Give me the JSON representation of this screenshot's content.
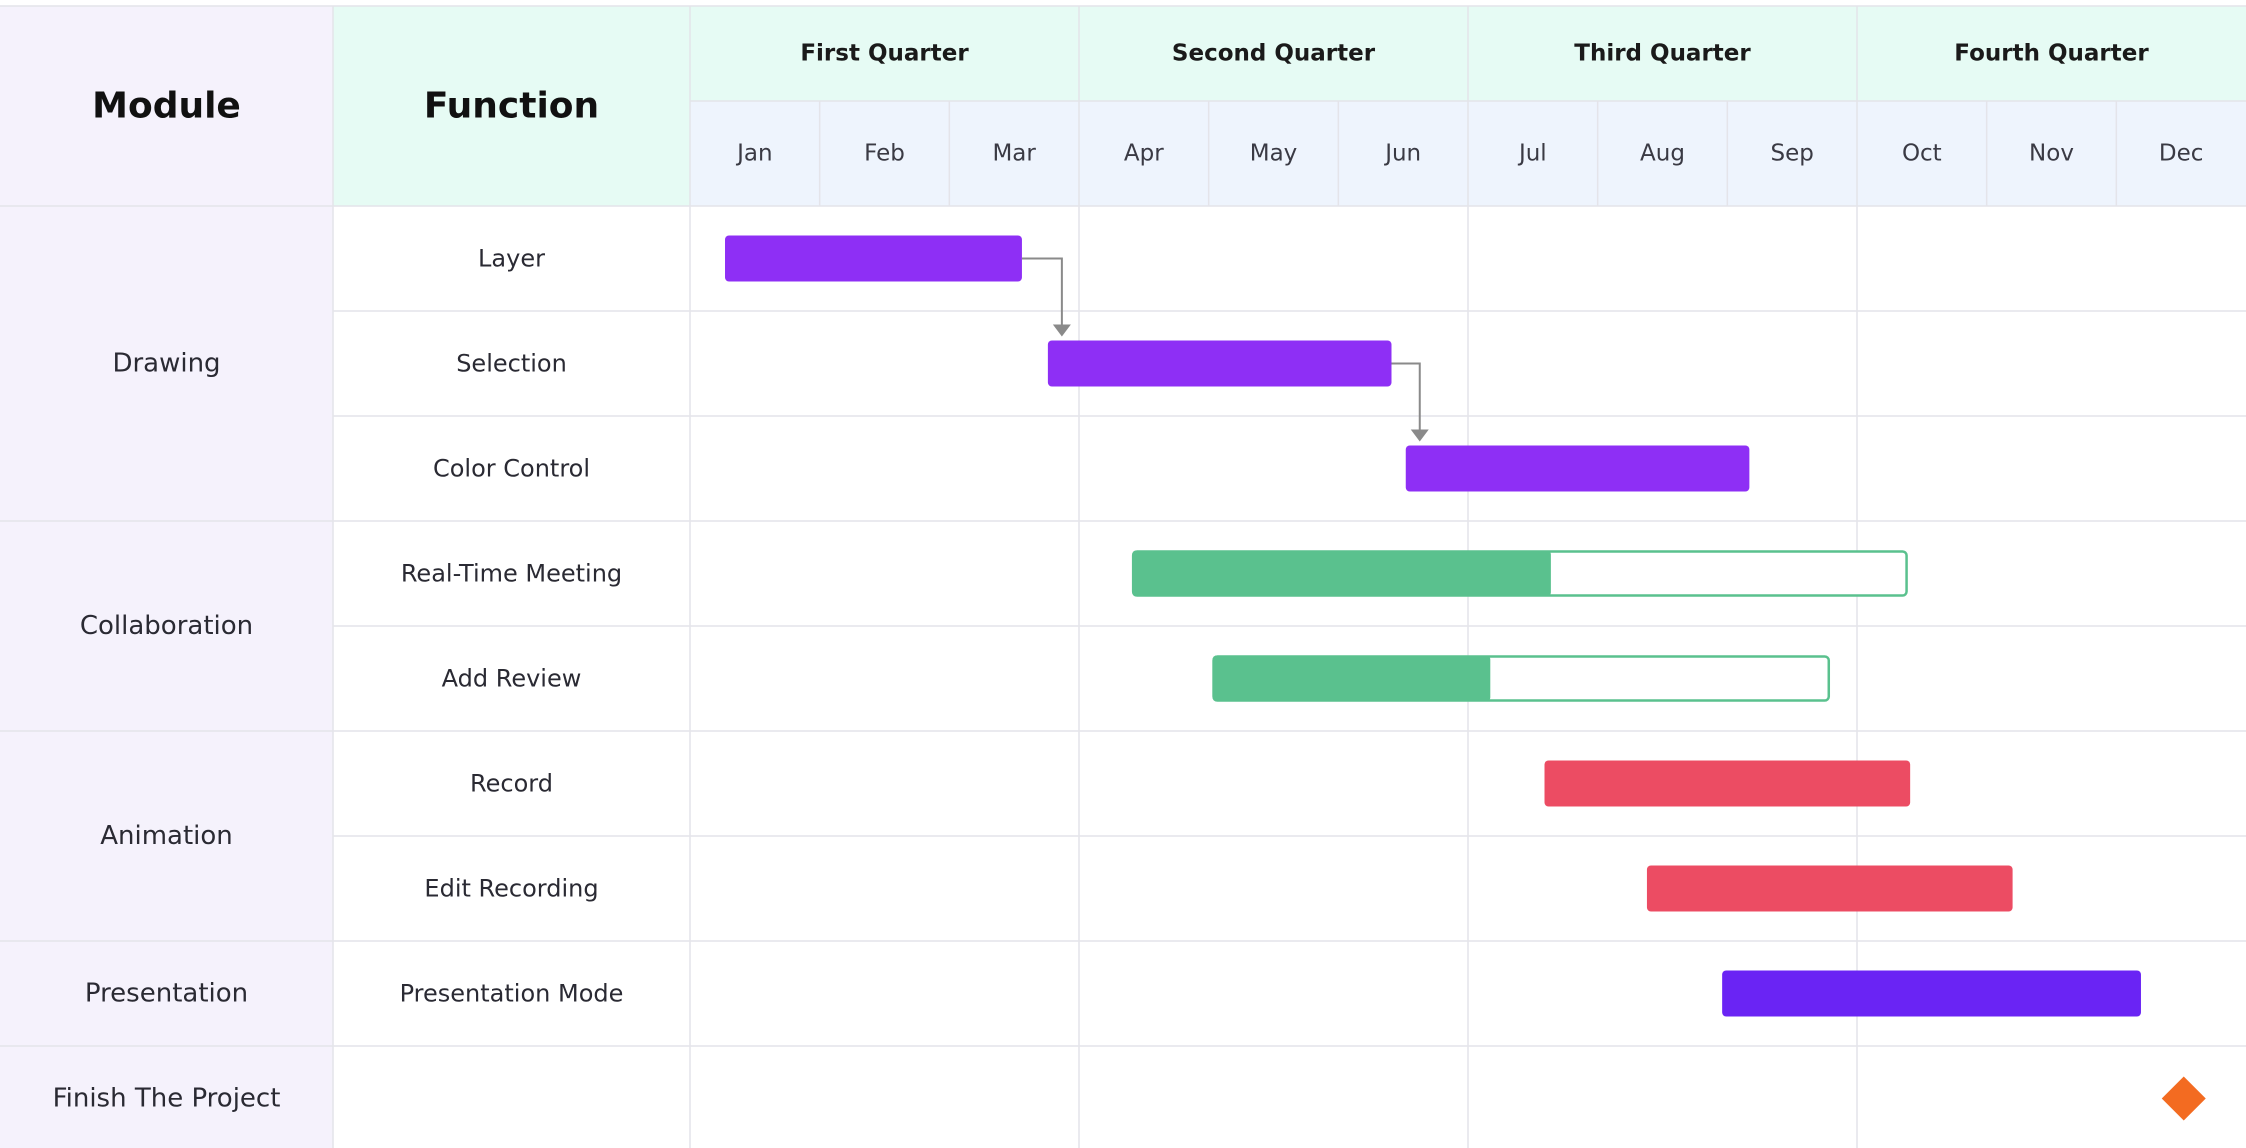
{
  "headers": {
    "module": "Module",
    "function": "Function"
  },
  "quarters": [
    "First Quarter",
    "Second Quarter",
    "Third Quarter",
    "Fourth Quarter"
  ],
  "months": [
    "Jan",
    "Feb",
    "Mar",
    "Apr",
    "May",
    "Jun",
    "Jul",
    "Aug",
    "Sep",
    "Oct",
    "Nov",
    "Dec"
  ],
  "modules": [
    {
      "name": "Drawing",
      "rows": 3
    },
    {
      "name": "Collaboration",
      "rows": 2
    },
    {
      "name": "Animation",
      "rows": 2
    },
    {
      "name": "Presentation",
      "rows": 1
    },
    {
      "name": "Finish The Project",
      "rows": 1
    }
  ],
  "colors": {
    "drawing": "#8e2ff5",
    "collaboration": "#5ac18e",
    "animation": "#ec4c63",
    "presentation": "#6a24f4",
    "milestone": "#f36b21",
    "module_bg": "#f5f2fc",
    "function_bg": "#e6fbf4",
    "quarter_bg": "#e6fbf4",
    "month_bg": "#eef4fd",
    "grid": "#e4e4ea",
    "arrow": "#8a8a8a"
  },
  "chart_data": {
    "type": "gantt",
    "time_unit": "month",
    "range": [
      0,
      12
    ],
    "tasks": [
      {
        "function": "Layer",
        "module": "Drawing",
        "start": 0.27,
        "end": 2.56,
        "progress": 1.0,
        "color": "#8e2ff5"
      },
      {
        "function": "Selection",
        "module": "Drawing",
        "start": 2.76,
        "end": 5.41,
        "progress": 1.0,
        "color": "#8e2ff5"
      },
      {
        "function": "Color Control",
        "module": "Drawing",
        "start": 5.52,
        "end": 8.17,
        "progress": 1.0,
        "color": "#8e2ff5"
      },
      {
        "function": "Real-Time Meeting",
        "module": "Collaboration",
        "start": 3.41,
        "end": 9.39,
        "progress": 0.54,
        "color": "#5ac18e"
      },
      {
        "function": "Add Review",
        "module": "Collaboration",
        "start": 4.03,
        "end": 8.79,
        "progress": 0.45,
        "color": "#5ac18e"
      },
      {
        "function": "Record",
        "module": "Animation",
        "start": 6.59,
        "end": 9.41,
        "progress": 1.0,
        "color": "#ec4c63"
      },
      {
        "function": "Edit Recording",
        "module": "Animation",
        "start": 7.38,
        "end": 10.2,
        "progress": 1.0,
        "color": "#ec4c63"
      },
      {
        "function": "Presentation Mode",
        "module": "Presentation",
        "start": 7.96,
        "end": 11.19,
        "progress": 1.0,
        "color": "#6a24f4"
      },
      {
        "function": "",
        "module": "Finish The Project",
        "milestone": 11.52,
        "color": "#f36b21"
      }
    ],
    "dependencies": [
      {
        "from": 0,
        "to": 1
      },
      {
        "from": 1,
        "to": 2
      }
    ]
  }
}
